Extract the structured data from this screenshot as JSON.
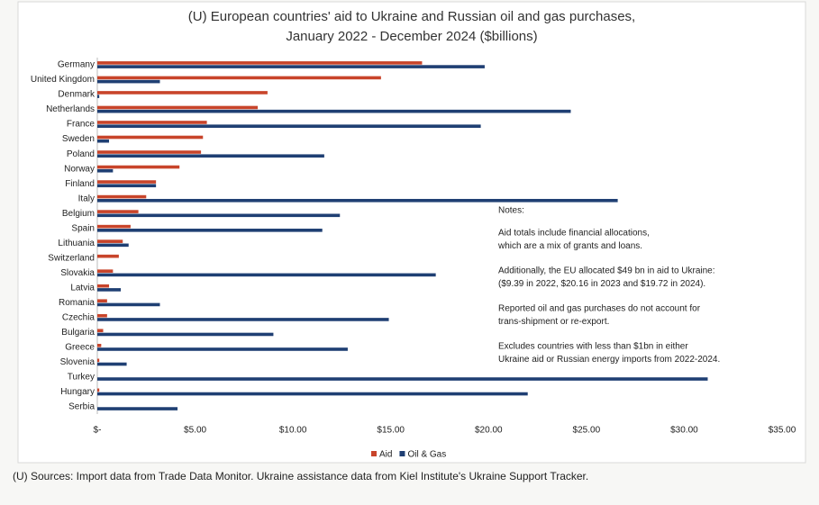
{
  "chart_data": {
    "type": "hbar",
    "title": "(U) European countries' aid to Ukraine and Russian oil and gas purchases,",
    "subtitle": "January 2022 - December 2024 ($billions)",
    "categories": [
      "Germany",
      "United Kingdom",
      "Denmark",
      "Netherlands",
      "France",
      "Sweden",
      "Poland",
      "Norway",
      "Finland",
      "Italy",
      "Belgium",
      "Spain",
      "Lithuania",
      "Switzerland",
      "Slovakia",
      "Latvia",
      "Romania",
      "Czechia",
      "Bulgaria",
      "Greece",
      "Slovenia",
      "Turkey",
      "Hungary",
      "Serbia"
    ],
    "series": [
      {
        "name": "Aid",
        "color": "#c8442a",
        "values": [
          16.6,
          14.5,
          8.7,
          8.2,
          5.6,
          5.4,
          5.3,
          4.2,
          3.0,
          2.5,
          2.1,
          1.7,
          1.3,
          1.1,
          0.8,
          0.6,
          0.5,
          0.5,
          0.3,
          0.2,
          0.1,
          0,
          0.1,
          0
        ]
      },
      {
        "name": "Oil & Gas",
        "color": "#1f3f73",
        "values": [
          19.8,
          3.2,
          0.1,
          24.2,
          19.6,
          0.6,
          11.6,
          0.8,
          3.0,
          26.6,
          12.4,
          11.5,
          1.6,
          0,
          17.3,
          1.2,
          3.2,
          14.9,
          9.0,
          12.8,
          1.5,
          31.2,
          22.0,
          4.1
        ]
      }
    ],
    "xlim": [
      0,
      35
    ],
    "xticks": [
      {
        "value": 0,
        "label": "$-"
      },
      {
        "value": 5,
        "label": "$5.00"
      },
      {
        "value": 10,
        "label": "$10.00"
      },
      {
        "value": 15,
        "label": "$15.00"
      },
      {
        "value": 20,
        "label": "$20.00"
      },
      {
        "value": 25,
        "label": "$25.00"
      },
      {
        "value": 30,
        "label": "$30.00"
      },
      {
        "value": 35,
        "label": "$35.00"
      }
    ],
    "legend_position": "bottom",
    "notes": {
      "heading": "Notes:",
      "paragraphs": [
        [
          "Aid totals include financial allocations,",
          "which are a mix of grants and loans."
        ],
        [
          "Additionally, the EU allocated $49 bn in aid to Ukraine:",
          "($9.39 in 2022, $20.16 in 2023 and $19.72 in 2024)."
        ],
        [
          "Reported oil and gas purchases do not account for",
          "trans-shipment or re-export."
        ],
        [
          "Excludes countries with less than $1bn in either",
          "Ukraine aid or Russian energy imports from 2022-2024."
        ]
      ]
    },
    "source": "(U) Sources:  Import data from Trade Data Monitor.  Ukraine assistance data from Kiel Institute's Ukraine Support Tracker."
  }
}
